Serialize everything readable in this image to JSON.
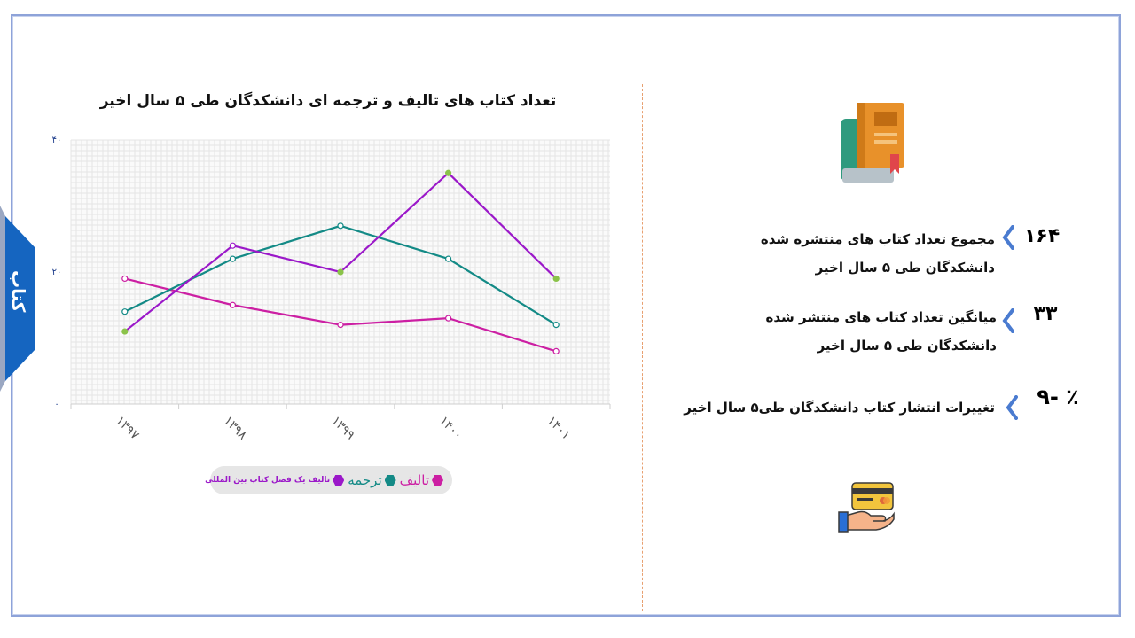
{
  "side_tab": {
    "label": "کتاب",
    "color": "#1565c0"
  },
  "chart_title": "تعداد کتاب های تالیف و ترجمه ای  دانشکدگان طی ۵ سال اخیر",
  "chart_data": {
    "type": "line",
    "title": "تعداد کتاب های تالیف و ترجمه ای  دانشکدگان طی ۵ سال اخیر",
    "categories": [
      "۱۳۹۷",
      "۱۳۹۸",
      "۱۳۹۹",
      "۱۴۰۰",
      "۱۴۰۱"
    ],
    "ytick_labels": [
      "۰",
      "۲۰",
      "۴۰"
    ],
    "yticks": [
      0,
      20,
      40
    ],
    "ylim": [
      0,
      40
    ],
    "grid": true,
    "legend_position": "bottom",
    "series": [
      {
        "name": "تالیف",
        "color": "#cc1fa3",
        "values": [
          19,
          15,
          12,
          13,
          8
        ]
      },
      {
        "name": "ترجمه",
        "color": "#138a86",
        "values": [
          14,
          22,
          27,
          22,
          12
        ]
      },
      {
        "name": "تالیف یک فصل کتاب بین المللی",
        "color": "#9b18c9",
        "values": [
          11,
          24,
          20,
          35,
          19
        ]
      }
    ]
  },
  "legend": [
    {
      "label": "تالیف",
      "color": "#cc1fa3"
    },
    {
      "label": "ترجمه",
      "color": "#138a86"
    },
    {
      "label": "تالیف یک فصل کتاب بین المللی",
      "color": "#9b18c9"
    }
  ],
  "stats": [
    {
      "value": "۱۶۴",
      "text": "مجموع  تعداد  کتاب های منتشره شده دانشکدگان طی ۵ سال اخیر"
    },
    {
      "value": "۳۳",
      "text": "میانگین تعداد کتاب های منتشر شده دانشکدگان طی ۵ سال  اخیر"
    },
    {
      "value": "۹- ٪",
      "text": "تغییرات انتشار کتاب  دانشکدگان طی۵ سال  اخیر"
    }
  ],
  "icons": {
    "book": "book-icon",
    "card": "hand-card-icon",
    "chevron": "chevron-left-icon"
  },
  "colors": {
    "chevron": "#4a7bd0",
    "frame": "#8ea3d9"
  }
}
